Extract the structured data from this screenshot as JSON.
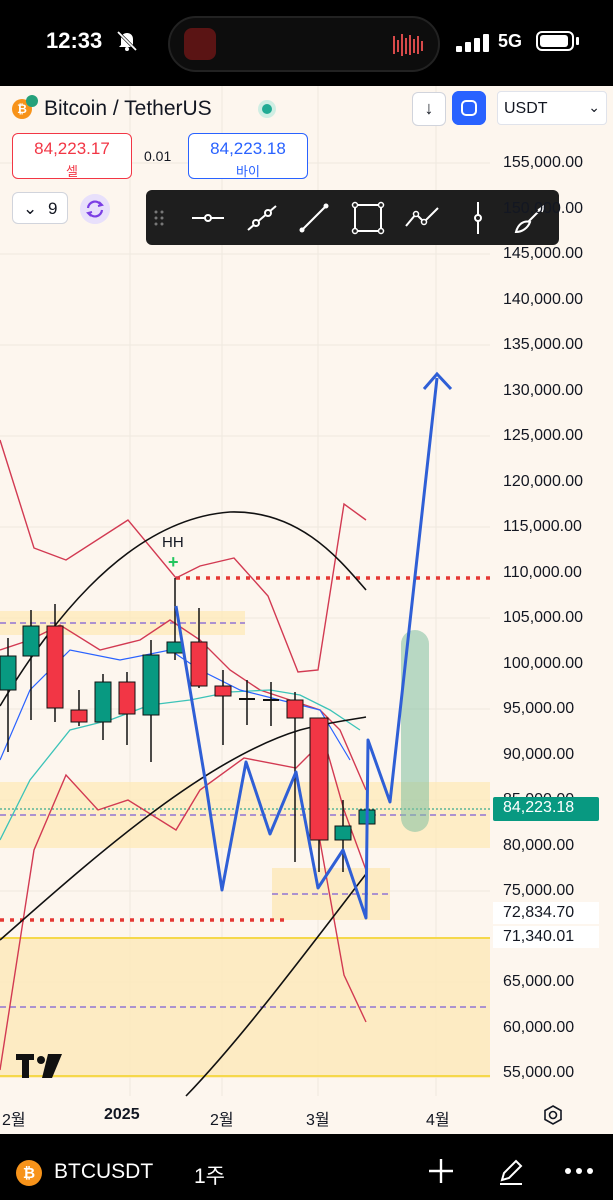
{
  "status_bar": {
    "time": "12:33",
    "network": "5G"
  },
  "header": {
    "symbol_title": "Bitcoin / TetherUS",
    "currency": "USDT"
  },
  "trade": {
    "sell_price": "84,223.17",
    "sell_label": "셀",
    "spread": "0.01",
    "buy_price": "84,223.18",
    "buy_label": "바이"
  },
  "indicators": {
    "count": "9"
  },
  "drawing_toolbar": {
    "tools": [
      "drag-handle-icon",
      "horizontal-line-icon",
      "ray-icon",
      "trend-line-icon",
      "rectangle-icon",
      "path-icon",
      "vertical-line-icon",
      "brush-icon"
    ]
  },
  "price_axis": {
    "labels": [
      "155,000.00",
      "150,000.00",
      "145,000.00",
      "140,000.00",
      "135,000.00",
      "130,000.00",
      "125,000.00",
      "120,000.00",
      "115,000.00",
      "110,000.00",
      "105,000.00",
      "100,000.00",
      "95,000.00",
      "90,000.00",
      "85,000.00",
      "80,000.00",
      "75,000.00",
      "65,000.00",
      "60,000.00",
      "55,000.00"
    ],
    "current_price": "84,223.18",
    "level_1": "72,834.70",
    "level_2": "71,340.01"
  },
  "time_axis": {
    "labels": [
      "2월",
      "2025",
      "2월",
      "3월",
      "4월"
    ]
  },
  "annotations": {
    "hh": "HH",
    "plus": "+"
  },
  "bottom_bar": {
    "symbol": "BTCUSDT",
    "interval": "1주"
  },
  "colors": {
    "up": "#089981",
    "down": "#f23645",
    "projection": "#2f5fd6",
    "zone": "#fde9b8"
  }
}
